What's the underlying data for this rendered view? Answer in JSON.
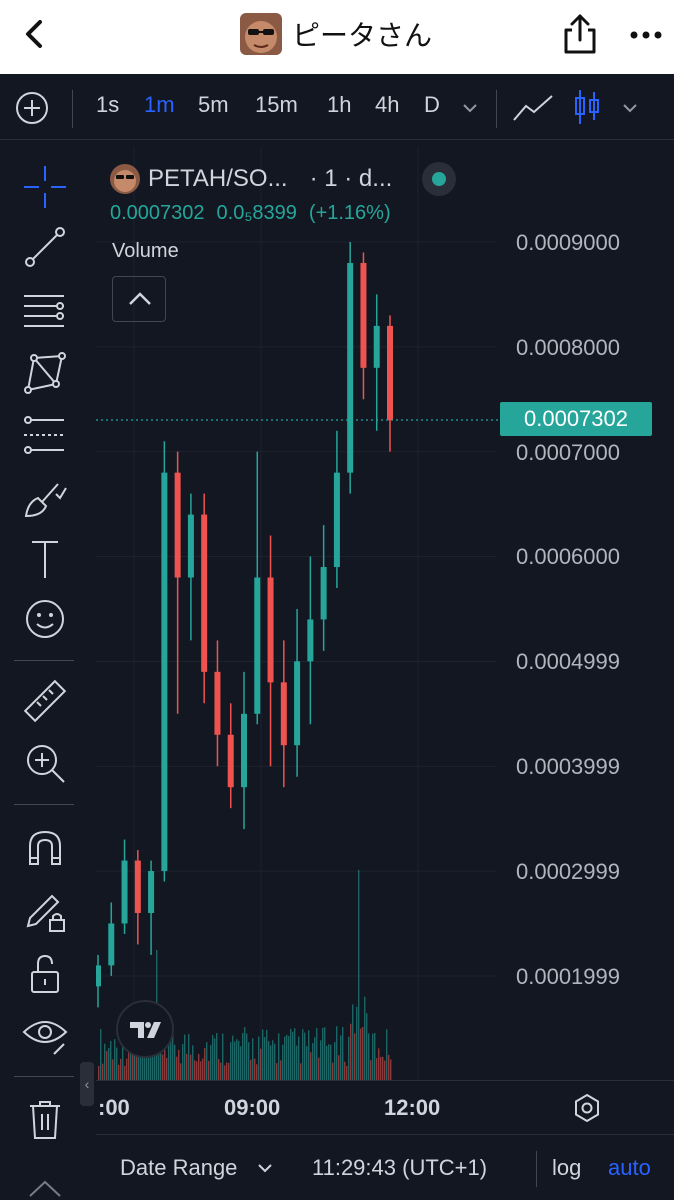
{
  "header": {
    "title": "ピータさん",
    "back_icon": "chevron-left-icon",
    "share_icon": "share-icon",
    "more_icon": "more-horizontal-icon"
  },
  "toolbar": {
    "intervals": [
      "1s",
      "1m",
      "5m",
      "15m",
      "1h",
      "4h",
      "D"
    ],
    "active_interval": "1m"
  },
  "legend": {
    "symbol": "PETAH/SO...",
    "interval": "· 1 · d...",
    "last_price": "0.0007302",
    "change_abs": "0.0₅8399",
    "change_pct": "(+1.16%)"
  },
  "volume": {
    "label": "Volume"
  },
  "price_axis": {
    "labels": [
      "0.0009000",
      "0.0008000",
      "0.0007000",
      "0.0006000",
      "0.0004999",
      "0.0003999",
      "0.0002999",
      "0.0001999"
    ],
    "current_price": "0.0007302"
  },
  "time_axis": {
    "labels": [
      ":00",
      "09:00",
      "12:00"
    ]
  },
  "bottom_bar": {
    "date_range": "Date Range",
    "clock": "11:29:43 (UTC+1)",
    "log": "log",
    "auto": "auto"
  },
  "colors": {
    "up": "#26a69a",
    "down": "#ef5350",
    "accent": "#2962ff",
    "bg": "#131722"
  },
  "chart_data": {
    "type": "candlestick",
    "ylim": [
      0.00014,
      0.00094
    ],
    "y_ticks": [
      0.0009,
      0.0008,
      0.0007,
      0.0006,
      0.0004999,
      0.0003999,
      0.0002999,
      0.0001999
    ],
    "x_ticks": [
      ":00",
      "09:00",
      "12:00"
    ],
    "current_price": 0.0007302,
    "series": [
      {
        "t": 0,
        "o": 0.00019,
        "c": 0.00021,
        "h": 0.00022,
        "l": 0.00017
      },
      {
        "t": 1,
        "o": 0.00021,
        "c": 0.00025,
        "h": 0.00027,
        "l": 0.0002
      },
      {
        "t": 2,
        "o": 0.00025,
        "c": 0.00031,
        "h": 0.00033,
        "l": 0.00024
      },
      {
        "t": 3,
        "o": 0.00031,
        "c": 0.00026,
        "h": 0.00032,
        "l": 0.00023
      },
      {
        "t": 4,
        "o": 0.00026,
        "c": 0.0003,
        "h": 0.00031,
        "l": 0.00022
      },
      {
        "t": 5,
        "o": 0.0003,
        "c": 0.00068,
        "h": 0.00071,
        "l": 0.00029
      },
      {
        "t": 6,
        "o": 0.00068,
        "c": 0.00058,
        "h": 0.0007,
        "l": 0.00045
      },
      {
        "t": 7,
        "o": 0.00058,
        "c": 0.00064,
        "h": 0.00066,
        "l": 0.00052
      },
      {
        "t": 8,
        "o": 0.00064,
        "c": 0.00049,
        "h": 0.00066,
        "l": 0.00046
      },
      {
        "t": 9,
        "o": 0.00049,
        "c": 0.00043,
        "h": 0.00052,
        "l": 0.0004
      },
      {
        "t": 10,
        "o": 0.00043,
        "c": 0.00038,
        "h": 0.00046,
        "l": 0.00036
      },
      {
        "t": 11,
        "o": 0.00038,
        "c": 0.00045,
        "h": 0.00049,
        "l": 0.00034
      },
      {
        "t": 12,
        "o": 0.00045,
        "c": 0.00058,
        "h": 0.0007,
        "l": 0.00044
      },
      {
        "t": 13,
        "o": 0.00058,
        "c": 0.00048,
        "h": 0.00062,
        "l": 0.0004
      },
      {
        "t": 14,
        "o": 0.00048,
        "c": 0.00042,
        "h": 0.00052,
        "l": 0.00038
      },
      {
        "t": 15,
        "o": 0.00042,
        "c": 0.0005,
        "h": 0.00055,
        "l": 0.00039
      },
      {
        "t": 16,
        "o": 0.0005,
        "c": 0.00054,
        "h": 0.0006,
        "l": 0.00044
      },
      {
        "t": 17,
        "o": 0.00054,
        "c": 0.00059,
        "h": 0.00063,
        "l": 0.00051
      },
      {
        "t": 18,
        "o": 0.00059,
        "c": 0.00068,
        "h": 0.00072,
        "l": 0.00057
      },
      {
        "t": 19,
        "o": 0.00068,
        "c": 0.00088,
        "h": 0.0009,
        "l": 0.00066
      },
      {
        "t": 20,
        "o": 0.00088,
        "c": 0.00078,
        "h": 0.00089,
        "l": 0.00075
      },
      {
        "t": 21,
        "o": 0.00078,
        "c": 0.00082,
        "h": 0.00085,
        "l": 0.00072
      },
      {
        "t": 22,
        "o": 0.00082,
        "c": 0.00073,
        "h": 0.00083,
        "l": 0.0007
      }
    ]
  }
}
